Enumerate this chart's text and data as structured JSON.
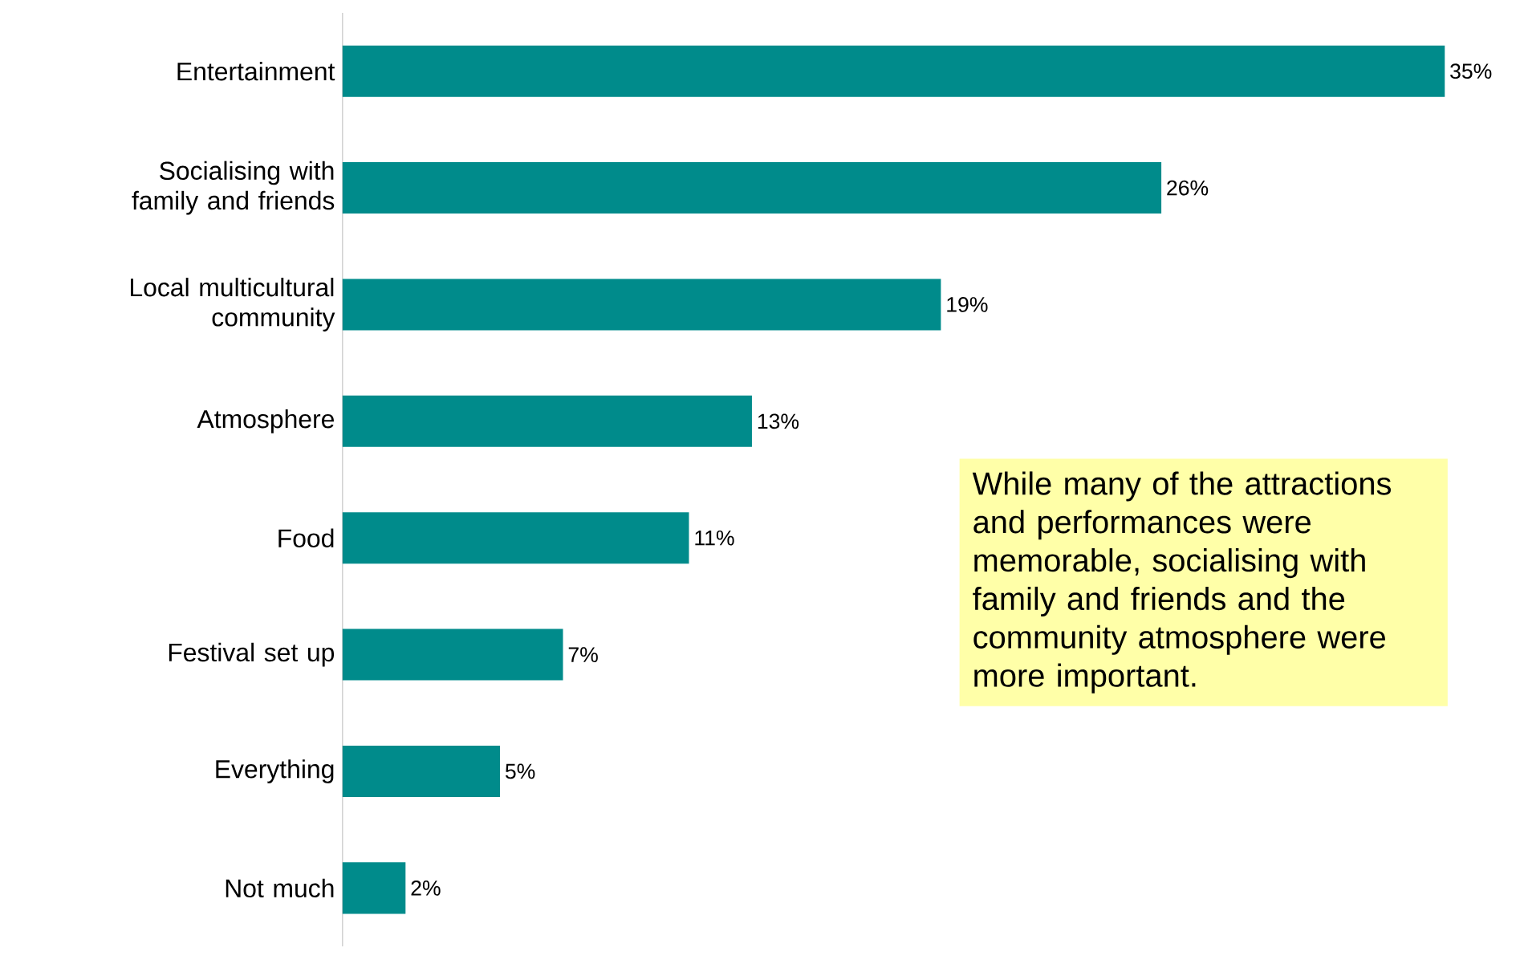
{
  "chart_data": {
    "type": "bar",
    "orientation": "horizontal",
    "categories": [
      "Entertainment",
      "Socialising with family and friends",
      "Local multicultural community",
      "Atmosphere",
      "Food",
      "Festival set up",
      "Everything",
      "Not much"
    ],
    "values": [
      35,
      26,
      19,
      13,
      11,
      7,
      5,
      2
    ],
    "value_labels": [
      "35%",
      "26%",
      "19%",
      "13%",
      "11%",
      "7%",
      "5%",
      "2%"
    ],
    "color": "#008b8b",
    "annotations": [
      "While many of the attractions and performances were memorable, socialising with family and friends and the community atmosphere were more important."
    ]
  }
}
